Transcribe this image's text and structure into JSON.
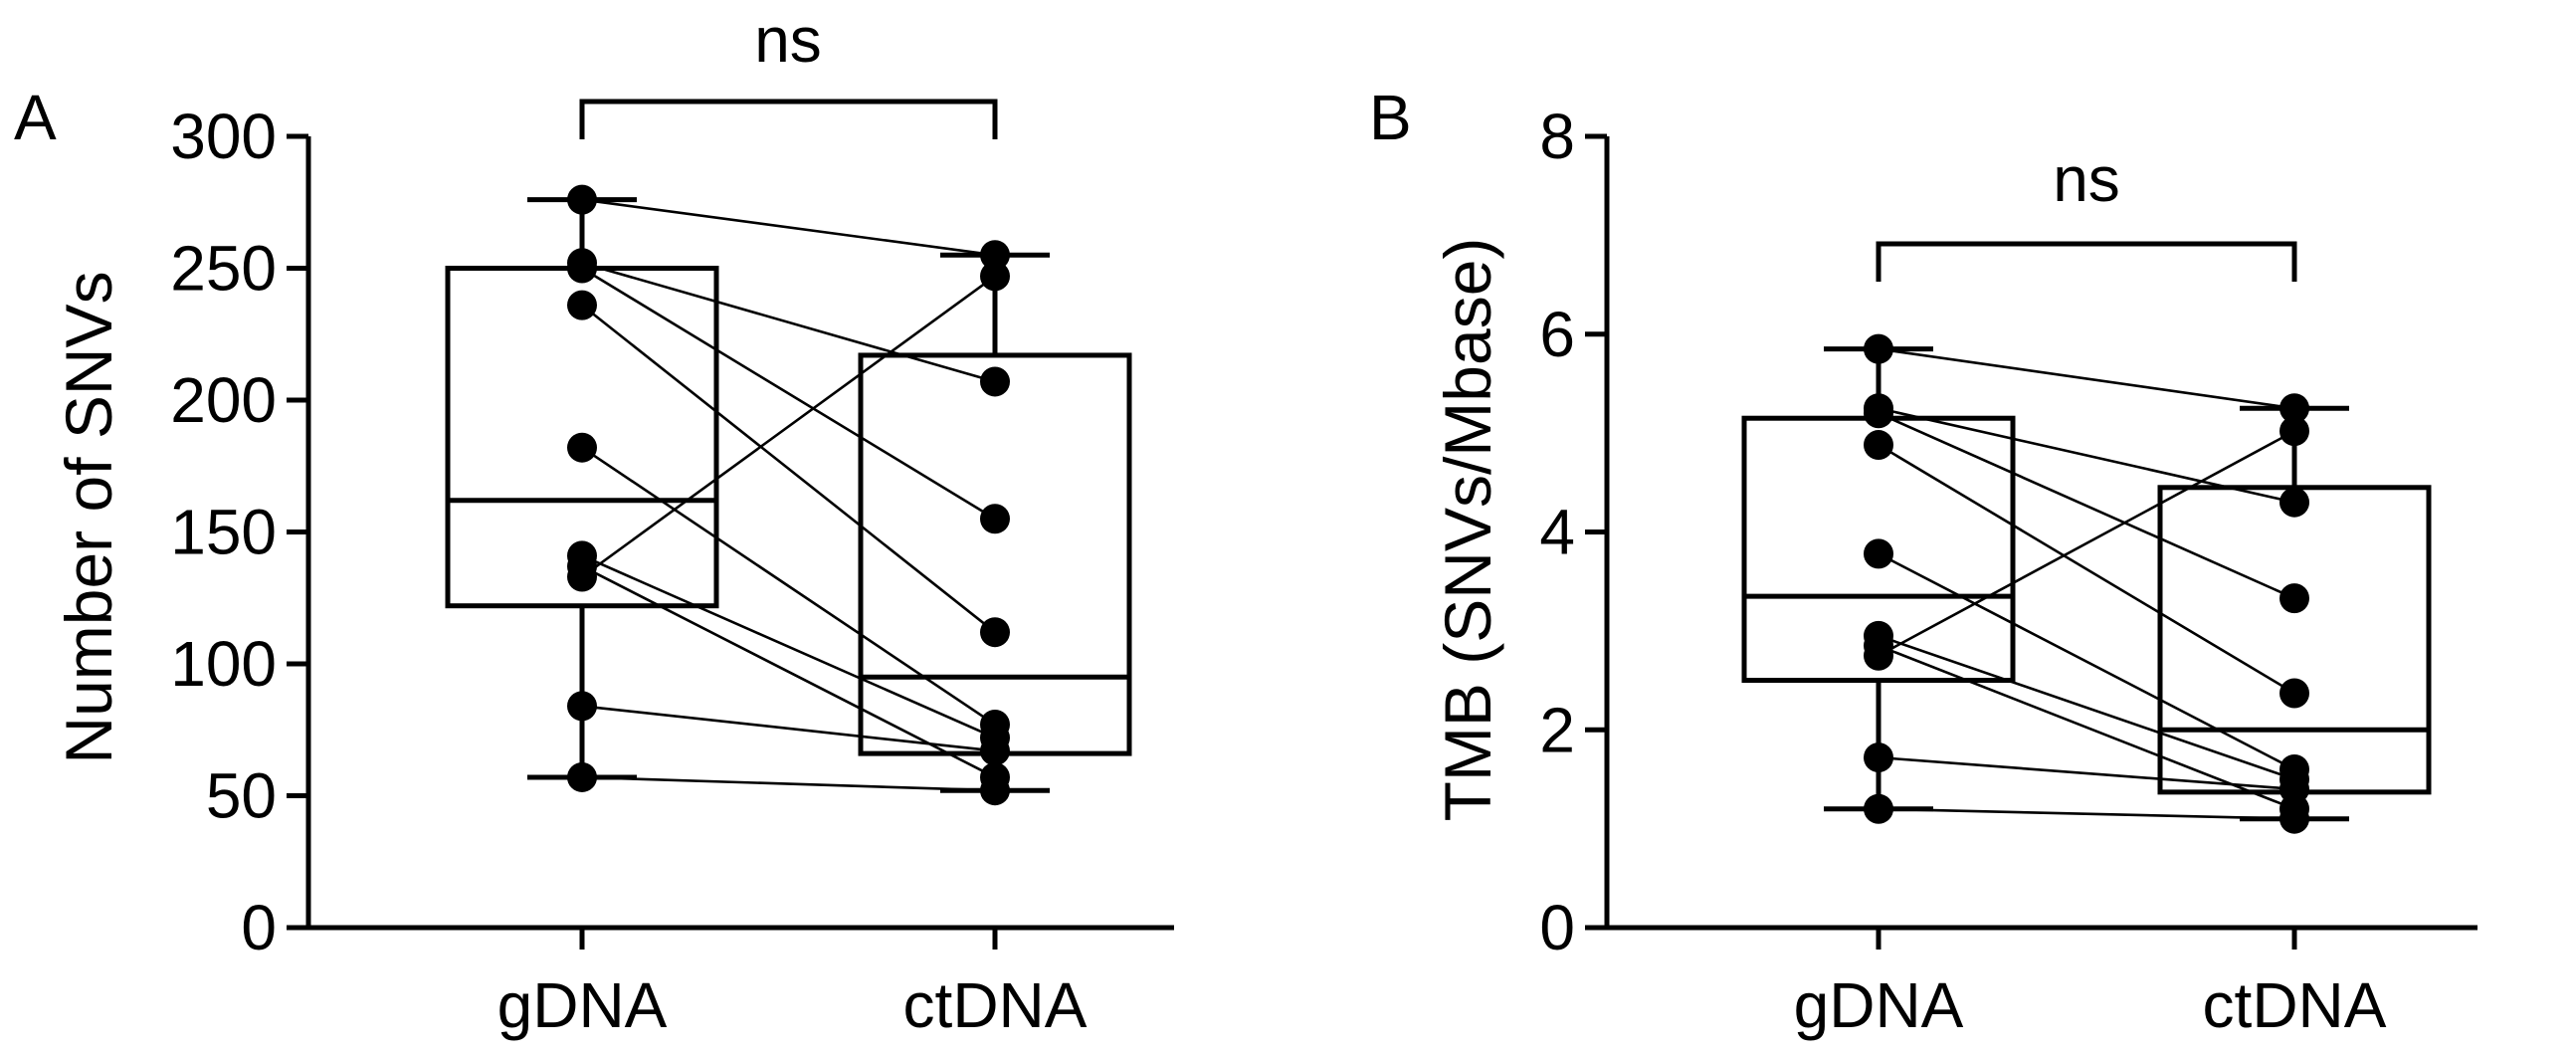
{
  "chart_data": [
    {
      "panel_label": "A",
      "type": "box",
      "ylabel": "Number of SNVs",
      "xlabel": "",
      "categories": [
        "gDNA",
        "ctDNA"
      ],
      "ylim": [
        0,
        300
      ],
      "yticks": [
        0,
        50,
        100,
        150,
        200,
        250,
        300
      ],
      "yticklabels": [
        "0",
        "50",
        "100",
        "150",
        "200",
        "250",
        "300"
      ],
      "box_stats": [
        {
          "category": "gDNA",
          "min": 57,
          "q1": 122,
          "median": 162,
          "q3": 250,
          "max": 276
        },
        {
          "category": "ctDNA",
          "min": 52,
          "q1": 66,
          "median": 95,
          "q3": 217,
          "max": 255
        }
      ],
      "pairs": [
        {
          "gDNA": 276,
          "ctDNA": 255
        },
        {
          "gDNA": 252,
          "ctDNA": 207
        },
        {
          "gDNA": 250,
          "ctDNA": 155
        },
        {
          "gDNA": 236,
          "ctDNA": 112
        },
        {
          "gDNA": 182,
          "ctDNA": 77
        },
        {
          "gDNA": 141,
          "ctDNA": 72
        },
        {
          "gDNA": 133,
          "ctDNA": 247
        },
        {
          "gDNA": 137,
          "ctDNA": 57
        },
        {
          "gDNA": 84,
          "ctDNA": 67
        },
        {
          "gDNA": 57,
          "ctDNA": 52
        }
      ],
      "significance": {
        "text": "ns",
        "placement": "top"
      }
    },
    {
      "panel_label": "B",
      "type": "box",
      "ylabel": "TMB (SNVs/Mbase)",
      "xlabel": "",
      "categories": [
        "gDNA",
        "ctDNA"
      ],
      "ylim": [
        0,
        8
      ],
      "yticks": [
        0,
        2,
        4,
        6,
        8
      ],
      "yticklabels": [
        "0",
        "2",
        "4",
        "6",
        "8"
      ],
      "box_stats": [
        {
          "category": "gDNA",
          "min": 1.2,
          "q1": 2.5,
          "median": 3.35,
          "q3": 5.15,
          "max": 5.85
        },
        {
          "category": "ctDNA",
          "min": 1.1,
          "q1": 1.37,
          "median": 2.0,
          "q3": 4.45,
          "max": 5.25
        }
      ],
      "pairs": [
        {
          "gDNA": 5.85,
          "ctDNA": 5.25
        },
        {
          "gDNA": 5.25,
          "ctDNA": 4.3
        },
        {
          "gDNA": 5.2,
          "ctDNA": 3.33
        },
        {
          "gDNA": 4.88,
          "ctDNA": 2.37
        },
        {
          "gDNA": 3.78,
          "ctDNA": 1.6
        },
        {
          "gDNA": 2.95,
          "ctDNA": 1.5
        },
        {
          "gDNA": 2.75,
          "ctDNA": 5.02
        },
        {
          "gDNA": 2.85,
          "ctDNA": 1.2
        },
        {
          "gDNA": 1.72,
          "ctDNA": 1.4
        },
        {
          "gDNA": 1.2,
          "ctDNA": 1.1
        }
      ],
      "significance": {
        "text": "ns",
        "placement": "mid"
      }
    }
  ]
}
